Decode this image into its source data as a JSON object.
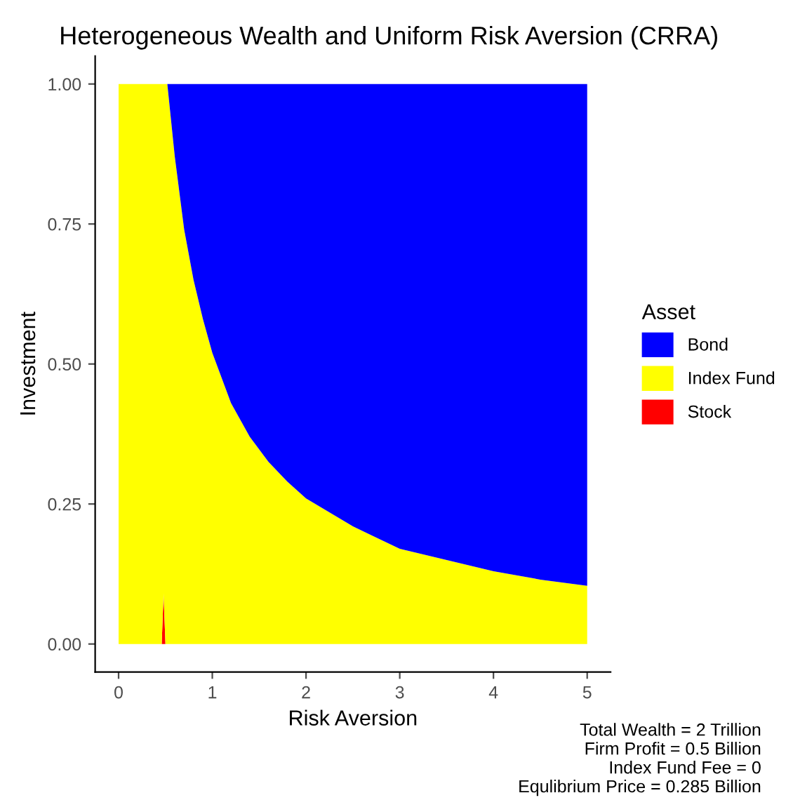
{
  "chart_data": {
    "type": "area",
    "stacked": true,
    "title": "Heterogeneous Wealth and Uniform Risk Aversion (CRRA)",
    "xlabel": "Risk Aversion",
    "ylabel": "Investment",
    "legend_title": "Asset",
    "legend": "right",
    "grid": false,
    "x": [
      0,
      0.46,
      0.48,
      0.5,
      0.52,
      0.6,
      0.7,
      0.8,
      0.9,
      1,
      1.2,
      1.4,
      1.6,
      1.8,
      2,
      2.5,
      3,
      3.5,
      4,
      4.5,
      5
    ],
    "series": [
      {
        "name": "Stock",
        "color": "#ff0000",
        "values": [
          0,
          0,
          0.09,
          0,
          0,
          0,
          0,
          0,
          0,
          0,
          0,
          0,
          0,
          0,
          0,
          0,
          0,
          0,
          0,
          0,
          0
        ]
      },
      {
        "name": "Index Fund",
        "color": "#ffff00",
        "values": [
          1,
          1,
          0.91,
          1,
          1,
          0.87,
          0.74,
          0.65,
          0.58,
          0.52,
          0.43,
          0.37,
          0.325,
          0.29,
          0.26,
          0.21,
          0.17,
          0.15,
          0.13,
          0.115,
          0.104
        ]
      },
      {
        "name": "Bond",
        "color": "#0000ff",
        "values": [
          0,
          0,
          0,
          0,
          0,
          0.13,
          0.26,
          0.35,
          0.42,
          0.48,
          0.57,
          0.63,
          0.675,
          0.71,
          0.74,
          0.79,
          0.83,
          0.85,
          0.87,
          0.885,
          0.896
        ]
      }
    ],
    "xlim": [
      -0.25,
      5.25
    ],
    "ylim": [
      -0.05,
      1.05
    ],
    "xticks": [
      0,
      1,
      2,
      3,
      4,
      5
    ],
    "yticks": [
      {
        "value": 0,
        "label": "0.00"
      },
      {
        "value": 0.25,
        "label": "0.25"
      },
      {
        "value": 0.5,
        "label": "0.50"
      },
      {
        "value": 0.75,
        "label": "0.75"
      },
      {
        "value": 1,
        "label": "1.00"
      }
    ],
    "annotations": [
      "Total Wealth = 2 Trillion\nFirm Profit = 0.5 Billion\nIndex Fund Fee = 0\nEqulibrium Price = 0.285 Billion"
    ]
  }
}
